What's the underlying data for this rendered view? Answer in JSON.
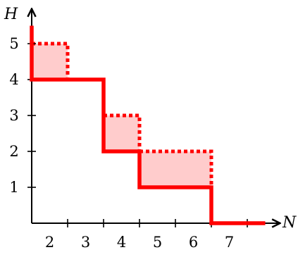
{
  "axes": {
    "x_label": "N",
    "y_label": "H",
    "x_ticks": [
      "2",
      "3",
      "4",
      "5",
      "6",
      "7"
    ],
    "y_ticks": [
      "1",
      "2",
      "3",
      "4",
      "5"
    ]
  },
  "colors": {
    "line": "#ff0000",
    "fill": "#ffcccc",
    "axis": "#000000"
  },
  "solid_staircase": [
    [
      1.5,
      5.5
    ],
    [
      1.5,
      4
    ],
    [
      3.5,
      4
    ],
    [
      3.5,
      2
    ],
    [
      4.5,
      2
    ],
    [
      4.5,
      1
    ],
    [
      6.5,
      1
    ],
    [
      6.5,
      0
    ],
    [
      8,
      0
    ]
  ],
  "shaded_regions": [
    {
      "x_from": 1.5,
      "x_to": 2.5,
      "y_from": 4,
      "y_to": 5
    },
    {
      "x_from": 3.5,
      "x_to": 4.5,
      "y_from": 2,
      "y_to": 3
    },
    {
      "x_from": 4.5,
      "x_to": 6.5,
      "y_from": 1,
      "y_to": 2
    }
  ]
}
